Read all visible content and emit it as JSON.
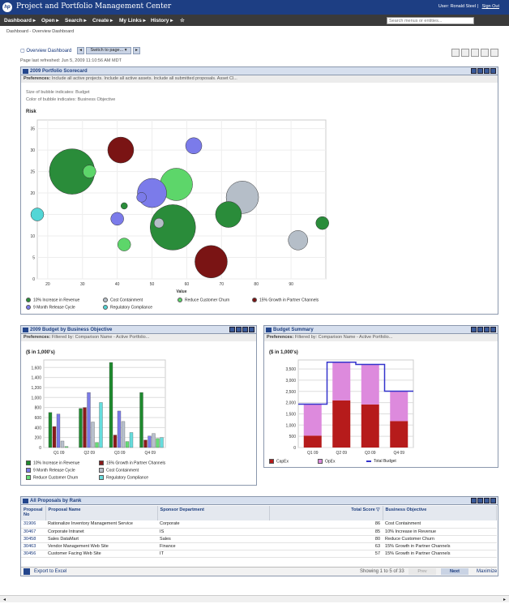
{
  "app": {
    "logo": "hp",
    "title": "Project and Portfolio Management Center",
    "user_label": "User: Ronald Steel",
    "separator": "|",
    "signout": "Sign Out"
  },
  "menu": [
    {
      "label": "Dashboard ▸"
    },
    {
      "label": "Open ▸"
    },
    {
      "label": "Search ▸"
    },
    {
      "label": "Create ▸"
    },
    {
      "label": "My Links ▸"
    },
    {
      "label": "History ▸"
    },
    {
      "label": "☆"
    }
  ],
  "search": {
    "placeholder": "Search menus or entities..."
  },
  "breadcrumb": "Dashboard - Overview Dashboard",
  "dashboard": {
    "title": "Overview Dashboard",
    "switch_label": "Switch to page...",
    "prev": "◂",
    "next": "▸",
    "refreshed": "Page last refreshed: Jun 5, 2009 11:10:56 AM MDT"
  },
  "scorecard": {
    "title": "2009 Portfolio Scorecard",
    "prefs_label": "Preferences:",
    "prefs_text": "Include all active projects. Include all active assets. Include all submitted proposals. Asset Cl...",
    "size_note": "Size of bubble indicates: Budget",
    "color_note": "Color of bubble indicates: Business Objective"
  },
  "budget_chart_portlet": {
    "title": "2009 Budget by Business Objective",
    "prefs_label": "Preferences:",
    "prefs_text": "Filtered by: Comparison Name - Active Portfolio..."
  },
  "summary_portlet": {
    "title": "Budget Summary",
    "prefs_label": "Preferences:",
    "prefs_text": "Filtered by: Comparison Name - Active Portfolio..."
  },
  "chart_data": [
    {
      "type": "scatter",
      "ylabel": "Risk",
      "xlabel": "Value",
      "xlim": [
        17,
        100
      ],
      "ylim": [
        0,
        37
      ],
      "xticks": [
        20,
        30,
        40,
        50,
        60,
        70,
        80,
        90
      ],
      "yticks": [
        0,
        5,
        10,
        15,
        20,
        25,
        30,
        35
      ],
      "series": [
        {
          "name": "10% Increase in Revenue",
          "color": "#2a8c3a",
          "points": [
            [
              27,
              25,
              7
            ],
            [
              56,
              12,
              7
            ],
            [
              72,
              15,
              4
            ],
            [
              42,
              17,
              1
            ],
            [
              99,
              13,
              2
            ]
          ]
        },
        {
          "name": "Cost Containment",
          "color": "#b5bec8",
          "points": [
            [
              76,
              19,
              5
            ],
            [
              92,
              9,
              3
            ],
            [
              52,
              13,
              1.5
            ]
          ]
        },
        {
          "name": "Reduce Customer Churn",
          "color": "#5dd66a",
          "points": [
            [
              32,
              25,
              2
            ],
            [
              57,
              22,
              5
            ],
            [
              42,
              8,
              2
            ]
          ]
        },
        {
          "name": "15% Growth in Partner Channels",
          "color": "#7a1414",
          "points": [
            [
              41,
              30,
              4
            ],
            [
              67,
              4,
              5
            ]
          ]
        },
        {
          "name": "9 Month Release Cycle",
          "color": "#7b7bea",
          "points": [
            [
              50,
              20,
              4.5
            ],
            [
              62,
              31,
              2.5
            ],
            [
              40,
              14,
              2
            ],
            [
              47,
              19,
              1.5
            ]
          ]
        },
        {
          "name": "Regulatory Compliance",
          "color": "#52d6d6",
          "points": [
            [
              17,
              15,
              2
            ]
          ]
        }
      ]
    },
    {
      "type": "bar",
      "ylabel": "($ in 1,000's)",
      "categories": [
        "Q1 09",
        "Q2 09",
        "Q3 09",
        "Q4 09"
      ],
      "ylim": [
        0,
        1750
      ],
      "yticks": [
        0,
        200,
        400,
        600,
        800,
        1000,
        1200,
        1400,
        1600
      ],
      "series": [
        {
          "name": "10% Increase in Revenue",
          "color": "#1e8a2e",
          "values": [
            700,
            780,
            1700,
            1100
          ]
        },
        {
          "name": "15% Growth in Partner Channels",
          "color": "#8a1a1a",
          "values": [
            420,
            800,
            250,
            150
          ]
        },
        {
          "name": "9 Month Release Cycle",
          "color": "#7b7be8",
          "values": [
            670,
            1100,
            730,
            230
          ]
        },
        {
          "name": "Cost Containment",
          "color": "#b8c0cc",
          "values": [
            130,
            510,
            520,
            280
          ]
        },
        {
          "name": "Reduce Customer Churn",
          "color": "#66dd77",
          "values": [
            20,
            100,
            120,
            180
          ]
        },
        {
          "name": "Regulatory Compliance",
          "color": "#66dddd",
          "values": [
            0,
            900,
            300,
            200
          ]
        }
      ]
    },
    {
      "type": "bar",
      "ylabel": "($ in 1,000's)",
      "categories": [
        "Q1 09",
        "Q2 09",
        "Q3 09",
        "Q4 09"
      ],
      "ylim": [
        0,
        3900
      ],
      "yticks": [
        0,
        500,
        1000,
        1500,
        2000,
        2500,
        3000,
        3500
      ],
      "series": [
        {
          "name": "CapEx",
          "color": "#b61b1b",
          "values": [
            530,
            2100,
            1920,
            1180
          ]
        },
        {
          "name": "OpEx",
          "color": "#dd8add",
          "values": [
            1400,
            1700,
            1780,
            1330
          ]
        },
        {
          "name": "Total Budget",
          "color": "#3333cc",
          "values": [
            1930,
            3800,
            3700,
            2510
          ]
        }
      ]
    }
  ],
  "proposals": {
    "title": "All Proposals by Rank",
    "columns": [
      "Proposal No",
      "Proposal Name",
      "Sponsor Department",
      "Total Score ▽",
      "Business Objective"
    ],
    "rows": [
      [
        "31906",
        "Rationalize Inventory Management Service",
        "Corporate",
        "86",
        "Cost Containment"
      ],
      [
        "30467",
        "Corporate Intranet",
        "IS",
        "85",
        "10% Increase in Revenue"
      ],
      [
        "30458",
        "Sales DataMart",
        "Sales",
        "80",
        "Reduce Customer Churn"
      ],
      [
        "30463",
        "Vendor Management Web Site",
        "Finance",
        "63",
        "15% Growth in Partner Channels"
      ],
      [
        "30456",
        "Customer Facing Web Site",
        "IT",
        "57",
        "15% Growth in Partner Channels"
      ]
    ],
    "export": "Export to Excel",
    "showing": "Showing 1 to 5 of 33",
    "prev": "Prev",
    "next": "Next",
    "maximize": "Maximize"
  }
}
